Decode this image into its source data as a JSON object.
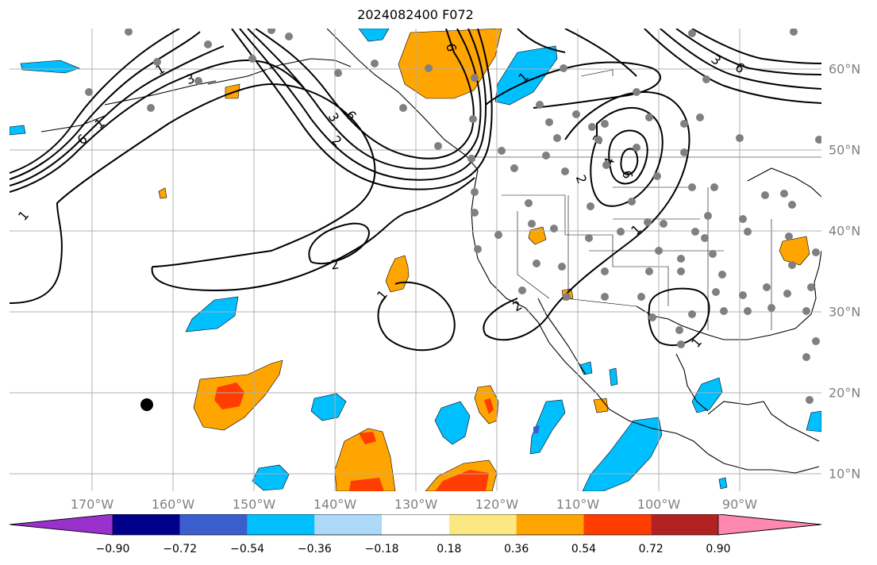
{
  "title": "2024082400 F072",
  "axes": {
    "lon_labels": [
      "170°W",
      "160°W",
      "150°W",
      "140°W",
      "130°W",
      "120°W",
      "110°W",
      "100°W",
      "90°W"
    ],
    "lat_labels": [
      "60°N",
      "50°N",
      "40°N",
      "30°N",
      "20°N",
      "10°N"
    ],
    "lon_range_deg": [
      -180,
      -80
    ],
    "lat_range_deg": [
      8,
      65
    ],
    "grid": true
  },
  "colorbar": {
    "tick_labels": [
      "−0.90",
      "−0.72",
      "−0.54",
      "−0.36",
      "−0.18",
      "0.18",
      "0.36",
      "0.54",
      "0.72",
      "0.90"
    ],
    "bins": [
      {
        "color": "#9932cc"
      },
      {
        "color": "#00008b"
      },
      {
        "color": "#3a5fcd"
      },
      {
        "color": "#00bfff"
      },
      {
        "color": "#add8f8"
      },
      {
        "color": "#ffffff"
      },
      {
        "color": "#fce883"
      },
      {
        "color": "#ffa500"
      },
      {
        "color": "#ff3d00"
      },
      {
        "color": "#b22222"
      },
      {
        "color": "#ff88b0"
      }
    ]
  },
  "contour_labels": [
    "1",
    "1",
    "3",
    "6",
    "6",
    "3",
    "2",
    "6",
    "2",
    "2",
    "1",
    "1",
    "3",
    "4",
    "6",
    "2",
    "1",
    "1",
    "1",
    "6",
    "3"
  ],
  "colors": {
    "grid": "#b0b0b0",
    "station": "#808080",
    "contour": "#000000",
    "positive_light": "#ffa500",
    "positive_strong": "#ff3d00",
    "negative": "#00bfff"
  }
}
